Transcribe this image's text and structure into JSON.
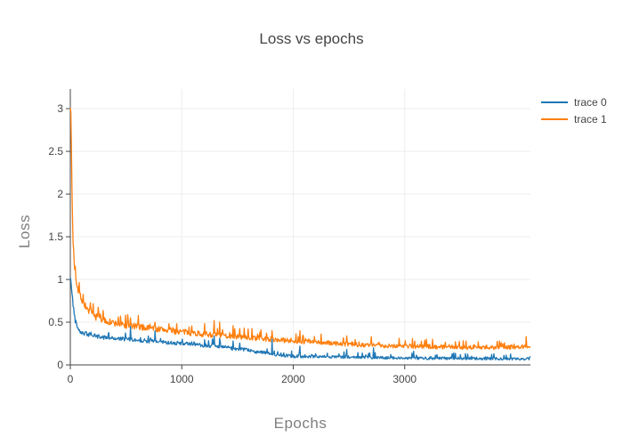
{
  "title": "Loss vs epochs",
  "colors": {
    "background": "#ffffff",
    "text": "#444444",
    "axis_title_text": "#7f7f7f",
    "grid": "#eeeeee",
    "axis_line": "#444444",
    "trace0": "#1f77b4",
    "trace1": "#ff7f0e"
  },
  "chart_data": {
    "type": "line",
    "title": "Loss vs epochs",
    "xlabel": "Epochs",
    "ylabel": "Loss",
    "xlim": [
      0,
      4128
    ],
    "ylim": [
      0,
      3.23
    ],
    "x_ticks": [
      0,
      1000,
      2000,
      3000
    ],
    "y_ticks": [
      0,
      0.5,
      1,
      1.5,
      2,
      2.5,
      3
    ],
    "grid": true,
    "legend_position": "right-outside-top",
    "sample_step": 5,
    "series": [
      {
        "name": "trace 0",
        "color": "#1f77b4",
        "seed": 42,
        "baseline": [
          [
            0,
            1.02
          ],
          [
            10,
            0.92
          ],
          [
            25,
            0.7
          ],
          [
            45,
            0.52
          ],
          [
            70,
            0.43
          ],
          [
            100,
            0.38
          ],
          [
            150,
            0.36
          ],
          [
            250,
            0.33
          ],
          [
            400,
            0.31
          ],
          [
            700,
            0.28
          ],
          [
            1000,
            0.25
          ],
          [
            1300,
            0.22
          ],
          [
            1600,
            0.17
          ],
          [
            1850,
            0.12
          ],
          [
            2000,
            0.1
          ],
          [
            2500,
            0.09
          ],
          [
            3000,
            0.08
          ],
          [
            3600,
            0.075
          ],
          [
            4128,
            0.07
          ]
        ],
        "noise": [
          [
            0,
            0.04
          ],
          [
            300,
            0.035
          ],
          [
            1500,
            0.03
          ],
          [
            2000,
            0.025
          ],
          [
            4128,
            0.022
          ]
        ],
        "spikes": [
          [
            540,
            0.45
          ],
          [
            760,
            0.4
          ],
          [
            1290,
            0.34
          ],
          [
            1340,
            0.31
          ],
          [
            1460,
            0.28
          ],
          [
            1810,
            0.3
          ],
          [
            2060,
            0.22
          ],
          [
            2480,
            0.18
          ],
          [
            2720,
            0.2
          ],
          [
            3080,
            0.16
          ],
          [
            3440,
            0.14
          ],
          [
            3800,
            0.13
          ]
        ]
      },
      {
        "name": "trace 1",
        "color": "#ff7f0e",
        "seed": 7,
        "baseline": [
          [
            0,
            3.05
          ],
          [
            6,
            2.9
          ],
          [
            12,
            2.3
          ],
          [
            18,
            1.8
          ],
          [
            26,
            1.4
          ],
          [
            38,
            1.15
          ],
          [
            55,
            0.98
          ],
          [
            70,
            0.88
          ],
          [
            110,
            0.74
          ],
          [
            160,
            0.64
          ],
          [
            220,
            0.57
          ],
          [
            300,
            0.52
          ],
          [
            450,
            0.47
          ],
          [
            650,
            0.44
          ],
          [
            850,
            0.41
          ],
          [
            1050,
            0.38
          ],
          [
            1300,
            0.35
          ],
          [
            1600,
            0.32
          ],
          [
            1900,
            0.29
          ],
          [
            2100,
            0.27
          ],
          [
            2400,
            0.25
          ],
          [
            2700,
            0.23
          ],
          [
            3000,
            0.22
          ],
          [
            3400,
            0.21
          ],
          [
            3800,
            0.2
          ],
          [
            4128,
            0.22
          ]
        ],
        "noise": [
          [
            0,
            0.06
          ],
          [
            200,
            0.06
          ],
          [
            1000,
            0.05
          ],
          [
            2000,
            0.04
          ],
          [
            4128,
            0.035
          ]
        ],
        "spikes": [
          [
            540,
            0.55
          ],
          [
            760,
            0.5
          ],
          [
            1290,
            0.52
          ],
          [
            1340,
            0.5
          ],
          [
            1460,
            0.46
          ],
          [
            1560,
            0.43
          ],
          [
            1810,
            0.4
          ],
          [
            2060,
            0.4
          ],
          [
            2250,
            0.36
          ],
          [
            2480,
            0.34
          ],
          [
            2700,
            0.33
          ],
          [
            2950,
            0.31
          ],
          [
            3250,
            0.3
          ],
          [
            3550,
            0.28
          ],
          [
            3850,
            0.28
          ],
          [
            4090,
            0.33
          ]
        ]
      }
    ]
  }
}
